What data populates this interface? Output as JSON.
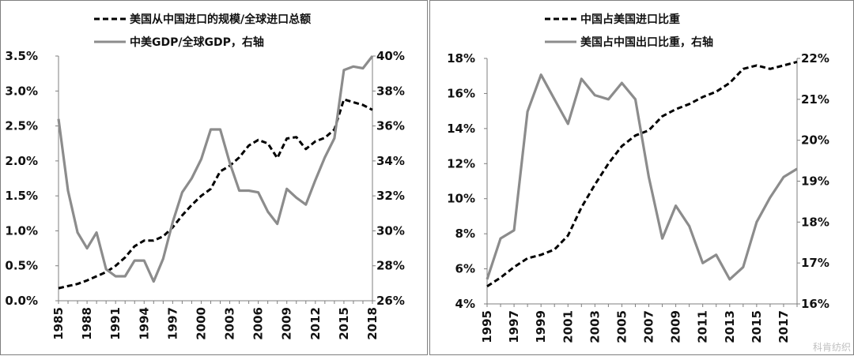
{
  "chart_data": [
    {
      "type": "line",
      "x": [
        1985,
        1986,
        1987,
        1988,
        1989,
        1990,
        1991,
        1992,
        1993,
        1994,
        1995,
        1996,
        1997,
        1998,
        1999,
        2000,
        2001,
        2002,
        2003,
        2004,
        2005,
        2006,
        2007,
        2008,
        2009,
        2010,
        2011,
        2012,
        2013,
        2014,
        2015,
        2016,
        2017,
        2018
      ],
      "x_ticks": [
        "1985",
        "1988",
        "1991",
        "1994",
        "1997",
        "2000",
        "2003",
        "2006",
        "2009",
        "2012",
        "2015",
        "2018"
      ],
      "left_ticks": [
        "0.0%",
        "0.5%",
        "1.0%",
        "1.5%",
        "2.0%",
        "2.5%",
        "3.0%",
        "3.5%"
      ],
      "right_ticks": [
        "26%",
        "28%",
        "30%",
        "32%",
        "34%",
        "36%",
        "38%",
        "40%"
      ],
      "ylim_left": [
        0,
        3.5
      ],
      "ylim_right": [
        26,
        40
      ],
      "grid": false,
      "legend_position": "top",
      "series": [
        {
          "name": "美国从中国进口的规模/全球进口总额",
          "axis": "left",
          "style": "dashed",
          "color": "#000000",
          "values": [
            0.18,
            0.21,
            0.24,
            0.29,
            0.35,
            0.41,
            0.5,
            0.62,
            0.78,
            0.86,
            0.86,
            0.92,
            1.05,
            1.22,
            1.37,
            1.5,
            1.6,
            1.85,
            1.93,
            2.05,
            2.22,
            2.3,
            2.25,
            2.04,
            2.32,
            2.34,
            2.17,
            2.28,
            2.33,
            2.45,
            2.88,
            2.84,
            2.8,
            2.73
          ]
        },
        {
          "name": "中美GDP/全球GDP，右轴",
          "axis": "right",
          "style": "solid",
          "color": "#8c8c8c",
          "values": [
            36.4,
            32.3,
            29.9,
            29.0,
            29.9,
            27.8,
            27.4,
            27.4,
            28.3,
            28.3,
            27.1,
            28.4,
            30.5,
            32.2,
            33.0,
            34.1,
            35.8,
            35.8,
            33.9,
            32.3,
            32.3,
            32.2,
            31.1,
            30.4,
            32.4,
            31.9,
            31.5,
            32.9,
            34.2,
            35.3,
            39.2,
            39.4,
            39.3,
            40.0
          ]
        }
      ]
    },
    {
      "type": "line",
      "x": [
        1995,
        1996,
        1997,
        1998,
        1999,
        2000,
        2001,
        2002,
        2003,
        2004,
        2005,
        2006,
        2007,
        2008,
        2009,
        2010,
        2011,
        2012,
        2013,
        2014,
        2015,
        2016,
        2017,
        2018
      ],
      "x_ticks": [
        "1995",
        "1997",
        "1999",
        "2001",
        "2003",
        "2005",
        "2007",
        "2009",
        "2011",
        "2013",
        "2015",
        "2017"
      ],
      "left_ticks": [
        "4%",
        "6%",
        "8%",
        "10%",
        "12%",
        "14%",
        "16%",
        "18%"
      ],
      "right_ticks": [
        "16%",
        "17%",
        "18%",
        "19%",
        "20%",
        "21%",
        "22%"
      ],
      "ylim_left": [
        4,
        18
      ],
      "ylim_right": [
        16,
        22
      ],
      "grid": false,
      "legend_position": "top",
      "series": [
        {
          "name": "中国占美国进口比重",
          "axis": "left",
          "style": "dashed",
          "color": "#000000",
          "values": [
            5.0,
            5.5,
            6.1,
            6.6,
            6.8,
            7.1,
            7.9,
            9.5,
            10.8,
            12.0,
            13.0,
            13.6,
            13.9,
            14.7,
            15.1,
            15.4,
            15.8,
            16.1,
            16.6,
            17.4,
            17.6,
            17.4,
            17.6,
            17.8
          ]
        },
        {
          "name": "美国占中国出口比重，右轴",
          "axis": "right",
          "style": "solid",
          "color": "#8c8c8c",
          "values": [
            16.6,
            17.6,
            17.8,
            20.7,
            21.6,
            21.0,
            20.4,
            21.5,
            21.1,
            21.0,
            21.4,
            21.0,
            19.1,
            17.6,
            18.4,
            17.9,
            17.0,
            17.2,
            16.6,
            16.9,
            18.0,
            18.6,
            19.1,
            19.3
          ]
        }
      ]
    }
  ],
  "watermark": "科肯纺织"
}
